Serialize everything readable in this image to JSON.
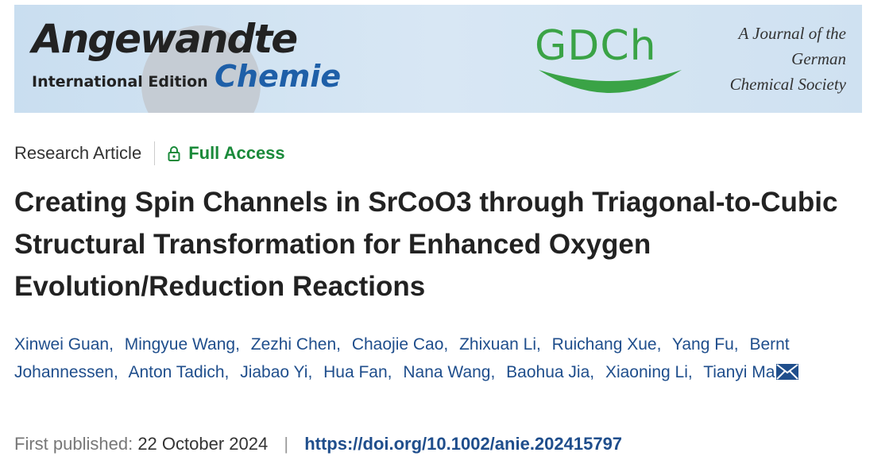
{
  "banner": {
    "journal_name": "Angewandte",
    "edition": "International Edition",
    "journal_subname": "Chemie",
    "society_logo": "GDCh",
    "tagline": [
      "A Journal of the",
      "German",
      "Chemical Society"
    ]
  },
  "article": {
    "type": "Research Article",
    "access": "Full Access",
    "title": "Creating Spin Channels in SrCoO3 through Triagonal-to-Cubic Structural Transformation for Enhanced Oxygen Evolution/Reduction Reactions",
    "authors": [
      "Xinwei Guan",
      "Mingyue Wang",
      "Zezhi Chen",
      "Chaojie Cao",
      "Zhixuan Li",
      "Ruichang Xue",
      "Yang Fu",
      "Bernt Johannessen",
      "Anton Tadich",
      "Jiabao Yi",
      "Hua Fan",
      "Nana Wang",
      "Baohua Jia",
      "Xiaoning Li",
      "Tianyi Ma"
    ],
    "author_separator": ",",
    "published_label": "First published:",
    "published_date": "22 October 2024",
    "meta_separator": "|",
    "doi": "https://doi.org/10.1002/anie.202415797"
  }
}
